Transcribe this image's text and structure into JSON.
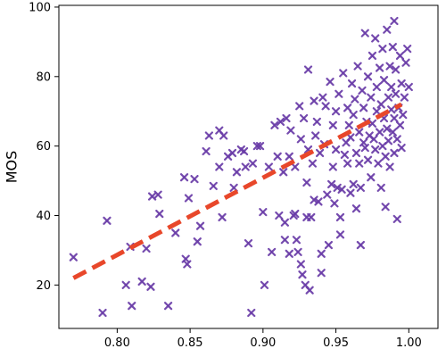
{
  "chart_data": {
    "type": "scatter",
    "title": "",
    "xlabel": "",
    "ylabel": "MOS",
    "xlim": [
      0.76,
      1.02
    ],
    "ylim": [
      7.5,
      100.5
    ],
    "xticks": [
      0.8,
      0.85,
      0.9,
      0.95,
      1.0
    ],
    "xtick_labels": [
      "0.80",
      "0.85",
      "0.90",
      "0.95",
      "1.00"
    ],
    "yticks": [
      20,
      40,
      60,
      80,
      100
    ],
    "ytick_labels": [
      "20",
      "40",
      "60",
      "80",
      "100"
    ],
    "grid": false,
    "legend": "none",
    "marker": "x",
    "colors": {
      "points": "#6a3ca8",
      "fit": "#e8472a"
    },
    "fit_line": {
      "style": "dashed",
      "x": [
        0.77,
        0.995
      ],
      "y": [
        22,
        72
      ]
    },
    "points": [
      [
        0.77,
        28
      ],
      [
        0.79,
        12
      ],
      [
        0.793,
        38.5
      ],
      [
        0.806,
        20
      ],
      [
        0.809,
        31
      ],
      [
        0.81,
        14
      ],
      [
        0.817,
        21
      ],
      [
        0.82,
        30.5
      ],
      [
        0.823,
        19.5
      ],
      [
        0.824,
        45.5
      ],
      [
        0.828,
        46
      ],
      [
        0.829,
        40.5
      ],
      [
        0.835,
        14
      ],
      [
        0.84,
        35
      ],
      [
        0.846,
        51
      ],
      [
        0.847,
        27.5
      ],
      [
        0.848,
        26
      ],
      [
        0.849,
        45
      ],
      [
        0.853,
        50.5
      ],
      [
        0.855,
        32.5
      ],
      [
        0.857,
        37
      ],
      [
        0.861,
        58.5
      ],
      [
        0.863,
        63
      ],
      [
        0.866,
        48.5
      ],
      [
        0.87,
        54
      ],
      [
        0.87,
        64.5
      ],
      [
        0.872,
        39.5
      ],
      [
        0.873,
        63
      ],
      [
        0.876,
        57
      ],
      [
        0.879,
        58
      ],
      [
        0.88,
        48
      ],
      [
        0.882,
        52.5
      ],
      [
        0.885,
        59
      ],
      [
        0.887,
        58.5
      ],
      [
        0.888,
        54
      ],
      [
        0.89,
        32
      ],
      [
        0.892,
        12
      ],
      [
        0.893,
        55
      ],
      [
        0.896,
        60
      ],
      [
        0.898,
        60
      ],
      [
        0.9,
        41
      ],
      [
        0.901,
        20
      ],
      [
        0.904,
        54
      ],
      [
        0.906,
        29.5
      ],
      [
        0.908,
        66
      ],
      [
        0.91,
        57
      ],
      [
        0.911,
        40
      ],
      [
        0.912,
        67
      ],
      [
        0.914,
        52.5
      ],
      [
        0.915,
        38
      ],
      [
        0.915,
        33
      ],
      [
        0.916,
        68
      ],
      [
        0.918,
        57
      ],
      [
        0.918,
        29
      ],
      [
        0.919,
        64.5
      ],
      [
        0.921,
        40
      ],
      [
        0.922,
        40.5
      ],
      [
        0.922,
        54
      ],
      [
        0.923,
        33
      ],
      [
        0.924,
        29.5
      ],
      [
        0.925,
        71.5
      ],
      [
        0.926,
        62
      ],
      [
        0.926,
        26
      ],
      [
        0.927,
        23
      ],
      [
        0.928,
        68
      ],
      [
        0.929,
        20
      ],
      [
        0.93,
        49.5
      ],
      [
        0.93,
        39.5
      ],
      [
        0.931,
        82
      ],
      [
        0.931,
        59
      ],
      [
        0.932,
        18.5
      ],
      [
        0.933,
        39.5
      ],
      [
        0.934,
        55
      ],
      [
        0.935,
        44.5
      ],
      [
        0.935,
        73
      ],
      [
        0.936,
        63
      ],
      [
        0.937,
        67
      ],
      [
        0.938,
        44
      ],
      [
        0.939,
        58
      ],
      [
        0.94,
        29
      ],
      [
        0.94,
        23.5
      ],
      [
        0.941,
        74
      ],
      [
        0.942,
        60.5
      ],
      [
        0.943,
        71.5
      ],
      [
        0.944,
        46
      ],
      [
        0.945,
        31.5
      ],
      [
        0.946,
        78.5
      ],
      [
        0.947,
        49
      ],
      [
        0.948,
        54
      ],
      [
        0.948,
        66
      ],
      [
        0.949,
        43.5
      ],
      [
        0.95,
        70
      ],
      [
        0.95,
        59
      ],
      [
        0.951,
        48
      ],
      [
        0.952,
        75
      ],
      [
        0.953,
        34.5
      ],
      [
        0.953,
        39.5
      ],
      [
        0.954,
        47.5
      ],
      [
        0.955,
        81
      ],
      [
        0.956,
        57.5
      ],
      [
        0.957,
        61
      ],
      [
        0.958,
        55
      ],
      [
        0.958,
        71
      ],
      [
        0.959,
        66
      ],
      [
        0.96,
        46.5
      ],
      [
        0.96,
        62.5
      ],
      [
        0.961,
        78
      ],
      [
        0.962,
        49
      ],
      [
        0.962,
        69
      ],
      [
        0.963,
        73.5
      ],
      [
        0.964,
        42
      ],
      [
        0.964,
        58
      ],
      [
        0.965,
        83
      ],
      [
        0.966,
        64
      ],
      [
        0.966,
        55
      ],
      [
        0.967,
        48
      ],
      [
        0.967,
        31.5
      ],
      [
        0.968,
        76
      ],
      [
        0.969,
        61
      ],
      [
        0.969,
        71
      ],
      [
        0.97,
        92.5
      ],
      [
        0.97,
        59.5
      ],
      [
        0.971,
        67
      ],
      [
        0.972,
        80
      ],
      [
        0.972,
        56
      ],
      [
        0.973,
        63
      ],
      [
        0.974,
        74
      ],
      [
        0.974,
        51
      ],
      [
        0.975,
        86
      ],
      [
        0.975,
        66.5
      ],
      [
        0.976,
        62
      ],
      [
        0.977,
        91
      ],
      [
        0.977,
        59
      ],
      [
        0.978,
        70
      ],
      [
        0.978,
        77
      ],
      [
        0.979,
        55
      ],
      [
        0.98,
        82.5
      ],
      [
        0.98,
        64
      ],
      [
        0.981,
        48
      ],
      [
        0.981,
        72
      ],
      [
        0.982,
        60
      ],
      [
        0.982,
        88
      ],
      [
        0.983,
        68
      ],
      [
        0.983,
        79
      ],
      [
        0.984,
        57
      ],
      [
        0.984,
        42.5
      ],
      [
        0.985,
        65
      ],
      [
        0.985,
        93.5
      ],
      [
        0.986,
        74
      ],
      [
        0.986,
        61.5
      ],
      [
        0.987,
        83
      ],
      [
        0.987,
        54
      ],
      [
        0.988,
        70.5
      ],
      [
        0.988,
        77
      ],
      [
        0.989,
        64
      ],
      [
        0.989,
        88.5
      ],
      [
        0.99,
        96
      ],
      [
        0.99,
        58
      ],
      [
        0.99,
        68
      ],
      [
        0.991,
        75
      ],
      [
        0.991,
        82
      ],
      [
        0.992,
        39
      ],
      [
        0.992,
        62
      ],
      [
        0.993,
        71
      ],
      [
        0.994,
        86
      ],
      [
        0.994,
        66
      ],
      [
        0.995,
        78
      ],
      [
        0.995,
        59.5
      ],
      [
        0.996,
        69
      ],
      [
        0.997,
        74
      ],
      [
        0.998,
        84
      ],
      [
        0.999,
        88
      ],
      [
        1.0,
        77
      ]
    ]
  }
}
